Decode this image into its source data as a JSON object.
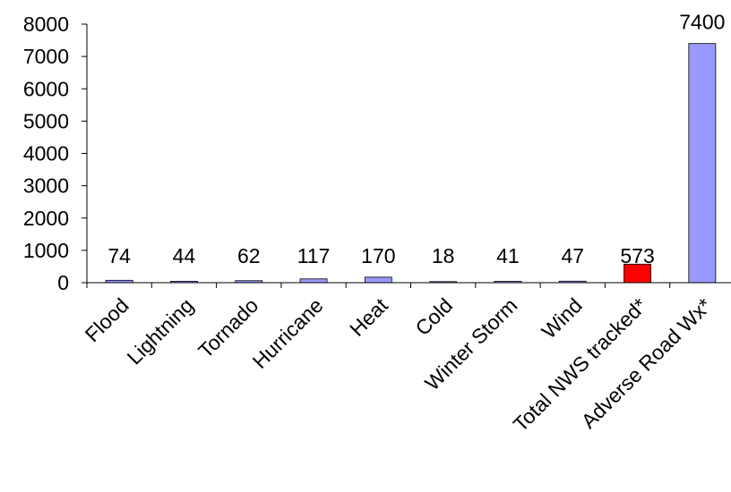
{
  "chart_data": {
    "type": "bar",
    "title": "",
    "xlabel": "",
    "ylabel": "",
    "ylim": [
      0,
      8000
    ],
    "yticks": [
      0,
      1000,
      2000,
      3000,
      4000,
      5000,
      6000,
      7000,
      8000
    ],
    "grid": false,
    "legend": "none",
    "categories": [
      "Flood",
      "Lightning",
      "Tornado",
      "Hurricane",
      "Heat",
      "Cold",
      "Winter Storm",
      "Wind",
      "Total NWS tracked*",
      "Adverse Road Wx*"
    ],
    "values": [
      74,
      44,
      62,
      117,
      170,
      18,
      41,
      47,
      573,
      7400
    ],
    "bar_colors": [
      "#9999ff",
      "#9999ff",
      "#9999ff",
      "#9999ff",
      "#9999ff",
      "#9999ff",
      "#9999ff",
      "#9999ff",
      "#ff0000",
      "#9999ff"
    ]
  }
}
